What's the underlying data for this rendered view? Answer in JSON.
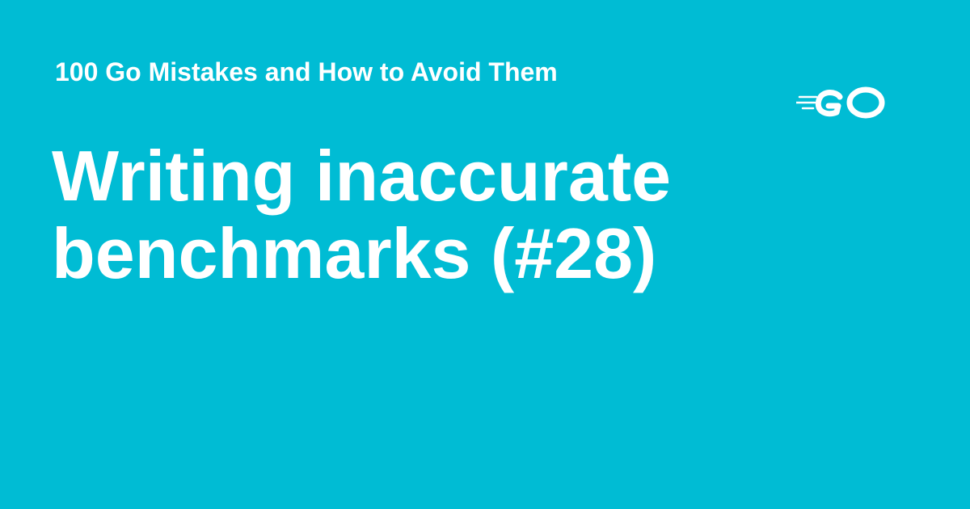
{
  "card": {
    "background_color": "#00BCD4",
    "text_color": "#FFFFFF"
  },
  "site": {
    "title": "100 Go Mistakes and How to Avoid Them"
  },
  "page": {
    "title_line_1": "Writing inaccurate",
    "title_line_2": "benchmarks (#28)"
  },
  "logo": {
    "icon": "go-logo-icon",
    "text": "GO"
  }
}
